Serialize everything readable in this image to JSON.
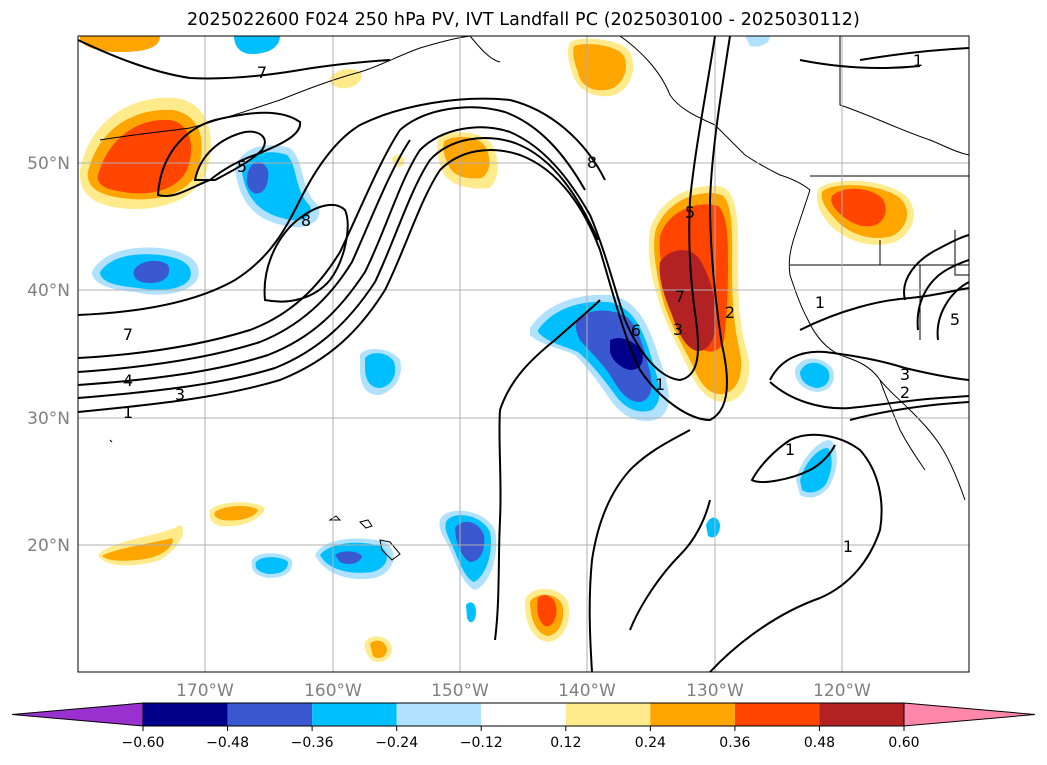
{
  "title": "2025022600 F024 250 hPa PV, IVT Landfall PC (2025030100 - 2025030112)",
  "map": {
    "lon_range": [
      -180,
      -110
    ],
    "lat_range": [
      10,
      60
    ],
    "lat_ticks": [
      {
        "label": "20°N"
      },
      {
        "label": "30°N"
      },
      {
        "label": "40°N"
      },
      {
        "label": "50°N"
      }
    ],
    "lon_ticks": [
      {
        "label": "170°W"
      },
      {
        "label": "160°W"
      },
      {
        "label": "150°W"
      },
      {
        "label": "140°W"
      },
      {
        "label": "130°W"
      },
      {
        "label": "120°W"
      }
    ],
    "contour_labels": [
      "7",
      "5",
      "8",
      "8",
      "7",
      "4",
      "3",
      "1",
      "1",
      "1",
      "1",
      "1",
      "2",
      "3",
      "3",
      "5",
      "7",
      "6",
      "5",
      "1",
      "2"
    ]
  },
  "colorbar": {
    "colors": [
      "#9b30d0",
      "#00008b",
      "#3a58d0",
      "#00bfff",
      "#b0e2ff",
      "#ffffff",
      "#ffeb8c",
      "#ffa500",
      "#ff4500",
      "#b22222",
      "#ff88aa"
    ],
    "labels": [
      "−0.60",
      "−0.48",
      "−0.36",
      "−0.24",
      "−0.12",
      "0.12",
      "0.24",
      "0.36",
      "0.48",
      "0.60"
    ]
  }
}
